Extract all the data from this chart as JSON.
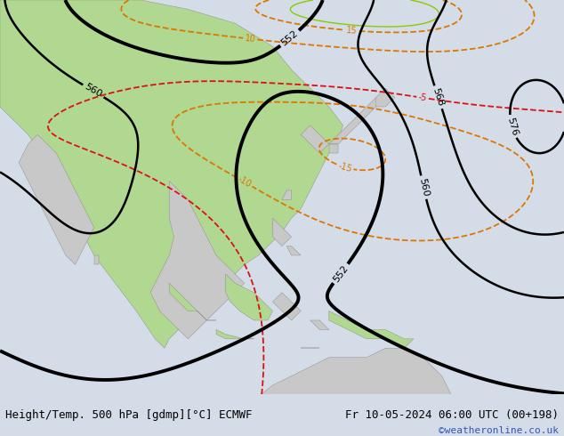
{
  "title_left": "Height/Temp. 500 hPa [gdmp][°C] ECMWF",
  "title_right": "Fr 10-05-2024 06:00 UTC (00+198)",
  "credit": "©weatheronline.co.uk",
  "bg_color": "#d4dce8",
  "sea_color": "#d4dce8",
  "land_color": "#c8c8c8",
  "land_green_color": "#b0d890",
  "bottom_bar_color": "#e0e0e0",
  "bottom_text_color": "#000000",
  "credit_color": "#3355bb",
  "figsize": [
    6.34,
    4.9
  ],
  "dpi": 100,
  "bottom_bar_height": 0.095,
  "title_fontsize": 9.0,
  "credit_fontsize": 8.0,
  "geo_color": "#000000",
  "temp_neg_color": "#dd1111",
  "temp_pos_color": "#dd7700",
  "temp_cyan_color": "#00aaaa",
  "contour_linewidth_geo": 2.0,
  "contour_linewidth_temp": 1.3,
  "label_fontsize": 7
}
